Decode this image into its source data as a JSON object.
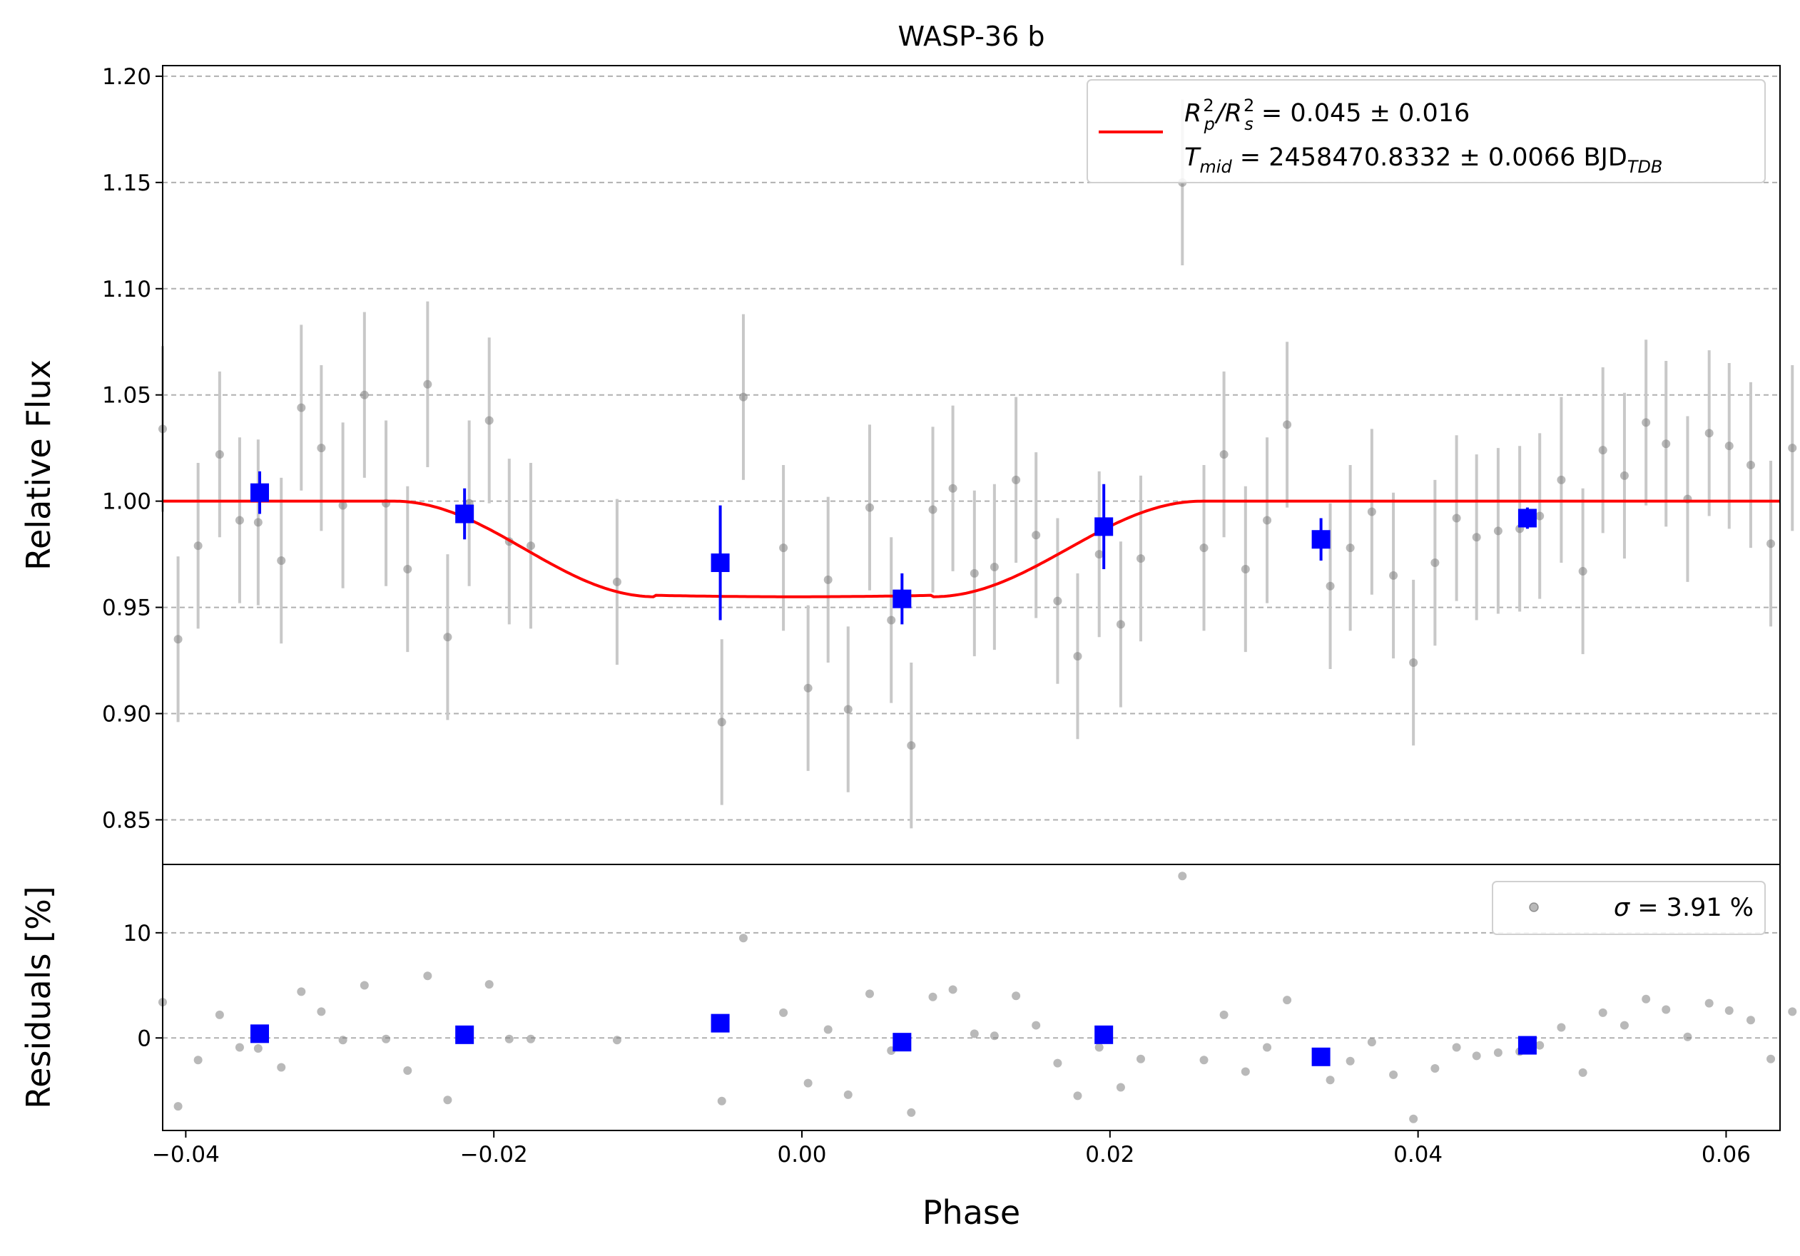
{
  "chart_data": [
    {
      "type": "scatter",
      "title": "WASP-36 b",
      "xlabel": "Phase",
      "ylabel": "Relative Flux",
      "xlim": [
        -0.0415,
        0.0635
      ],
      "ylim": [
        0.829,
        1.205
      ],
      "xticks": [
        -0.04,
        -0.02,
        0.0,
        0.02,
        0.04,
        0.06
      ],
      "xtick_labels": [
        "−0.04",
        "−0.02",
        "0.00",
        "0.02",
        "0.04",
        "0.06"
      ],
      "yticks": [
        0.85,
        0.9,
        0.95,
        1.0,
        1.05,
        1.1,
        1.15,
        1.2
      ],
      "ytick_labels": [
        "0.85",
        "0.90",
        "0.95",
        "1.00",
        "1.05",
        "1.10",
        "1.15",
        "1.20"
      ],
      "grid": "horizontal dashed",
      "legend": {
        "placement": "top-right",
        "line1": {
          "prefix": "R",
          "sub1": "p",
          "sup1": "2",
          "slash": "/R",
          "sub2": "s",
          "sup2": "2",
          "value": " = 0.045 ± 0.016"
        },
        "line2": {
          "prefix": "T",
          "sub1": "mid",
          "value": " = 2458470.8332 ± 0.0066 BJD",
          "sub2": "TDB"
        }
      },
      "model": {
        "color": "#ff0000",
        "baseline": 1.0,
        "depth": 0.045,
        "t_mid": 0.0,
        "ingress_start": -0.0265,
        "flat_start": -0.0095,
        "flat_end": 0.0085,
        "egress_end": 0.026
      },
      "raw_color": "#808080",
      "raw_err_color": "#c8c8c8",
      "raw_x": [
        -0.0415,
        -0.0405,
        -0.0392,
        -0.0378,
        -0.0365,
        -0.0353,
        -0.0338,
        -0.0325,
        -0.0312,
        -0.0298,
        -0.0284,
        -0.027,
        -0.0256,
        -0.0243,
        -0.023,
        -0.0216,
        -0.0203,
        -0.019,
        -0.0176,
        -0.012,
        -0.0052,
        -0.0038,
        -0.0012,
        0.0004,
        0.0017,
        0.003,
        0.0044,
        0.0058,
        0.0071,
        0.0085,
        0.0098,
        0.0112,
        0.0125,
        0.0139,
        0.0152,
        0.0166,
        0.0179,
        0.0193,
        0.0207,
        0.022,
        0.0247,
        0.0261,
        0.0274,
        0.0288,
        0.0302,
        0.0315,
        0.0343,
        0.0356,
        0.037,
        0.0384,
        0.0397,
        0.0411,
        0.0425,
        0.0438,
        0.0452,
        0.0466,
        0.0479,
        0.0493,
        0.0507,
        0.052,
        0.0534,
        0.0548,
        0.0561,
        0.0575,
        0.0589,
        0.0602,
        0.0616,
        0.0629,
        0.0643
      ],
      "raw_y": [
        1.034,
        0.935,
        0.979,
        1.022,
        0.991,
        0.99,
        0.972,
        1.044,
        1.025,
        0.998,
        1.05,
        0.999,
        0.968,
        1.055,
        0.936,
        0.999,
        1.038,
        0.981,
        0.979,
        0.962,
        0.896,
        1.049,
        0.978,
        0.912,
        0.963,
        0.902,
        0.997,
        0.944,
        0.885,
        0.996,
        1.006,
        0.966,
        0.969,
        1.01,
        0.984,
        0.953,
        0.927,
        0.975,
        0.942,
        0.973,
        1.15,
        0.978,
        1.022,
        0.968,
        0.991,
        1.036,
        0.96,
        0.978,
        0.995,
        0.965,
        0.924,
        0.971,
        0.992,
        0.983,
        0.986,
        0.987,
        0.993,
        1.01,
        0.967,
        1.024,
        1.012,
        1.037,
        1.027,
        1.001,
        1.032,
        1.026,
        1.017,
        0.98,
        1.025
      ],
      "raw_err": 0.039,
      "binned_color": "#0000ff",
      "binned_x": [
        -0.0352,
        -0.0219,
        -0.0053,
        0.0065,
        0.0196,
        0.0337,
        0.0471
      ],
      "binned_y": [
        1.004,
        0.994,
        0.971,
        0.954,
        0.988,
        0.982,
        0.992
      ],
      "binned_err": [
        0.01,
        0.012,
        0.027,
        0.012,
        0.02,
        0.01,
        0.005
      ]
    },
    {
      "type": "scatter",
      "xlabel": "Phase",
      "ylabel": "Residuals [%]",
      "xlim": [
        -0.0415,
        0.0635
      ],
      "ylim": [
        -8.8,
        16.5
      ],
      "yticks": [
        0,
        10
      ],
      "ytick_labels": [
        "0",
        "10"
      ],
      "grid": "horizontal dashed",
      "legend": {
        "placement": "top-right",
        "symbol": "σ",
        "value": " = 3.91 %"
      },
      "raw_res": [
        3.4,
        -6.5,
        -2.1,
        2.2,
        -0.9,
        -1.0,
        -2.8,
        4.4,
        2.5,
        -0.2,
        5.0,
        -0.1,
        -3.1,
        5.9,
        -5.9,
        0.5,
        5.1,
        -0.1,
        -0.1,
        -0.2,
        -6.0,
        9.5,
        2.4,
        -4.3,
        0.8,
        -5.4,
        4.2,
        -1.2,
        -7.1,
        3.9,
        4.6,
        0.4,
        0.2,
        4.0,
        1.2,
        -2.4,
        -5.5,
        -0.9,
        -4.7,
        -2.0,
        15.4,
        -2.1,
        2.2,
        -3.2,
        -0.9,
        3.6,
        -4.0,
        -2.2,
        -0.4,
        -3.5,
        -7.7,
        -2.9,
        -0.9,
        -1.7,
        -1.4,
        -1.3,
        -0.7,
        1.0,
        -3.3,
        2.4,
        1.2,
        3.7,
        2.7,
        0.1,
        3.3,
        2.6,
        1.7,
        -2.0,
        2.5
      ],
      "binned_res": [
        0.4,
        0.3,
        1.4,
        -0.4,
        0.3,
        -1.8,
        -0.7
      ]
    }
  ]
}
